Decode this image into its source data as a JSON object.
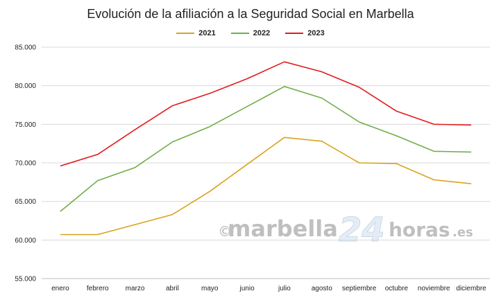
{
  "chart_data": {
    "type": "line",
    "title": "Evolución de la afiliación a la Seguridad Social en Marbella",
    "categories": [
      "enero",
      "febrero",
      "marzo",
      "abril",
      "mayo",
      "junio",
      "julio",
      "agosto",
      "septiembre",
      "octubre",
      "noviembre",
      "diciembre"
    ],
    "ylim": [
      55000,
      85000
    ],
    "yticks": [
      55000,
      60000,
      65000,
      70000,
      75000,
      80000,
      85000
    ],
    "ytick_labels": [
      "55.000",
      "60.000",
      "65.000",
      "70.000",
      "75.000",
      "80.000",
      "85.000"
    ],
    "grid": true,
    "legend_position": "top-center",
    "series": [
      {
        "name": "2021",
        "color": "#d9a21b",
        "values": [
          60700,
          60700,
          62000,
          63300,
          66300,
          69800,
          73300,
          72800,
          70000,
          69900,
          67800,
          67300
        ]
      },
      {
        "name": "2022",
        "color": "#70ad47",
        "values": [
          63700,
          67700,
          69400,
          72700,
          74700,
          77300,
          79900,
          78400,
          75300,
          73500,
          71500,
          71400
        ]
      },
      {
        "name": "2023",
        "color": "#e31a1c",
        "values": [
          69600,
          71100,
          74300,
          77400,
          79000,
          80900,
          83100,
          81800,
          79800,
          76700,
          75000,
          74900
        ]
      }
    ]
  },
  "watermark": {
    "copyright": "©",
    "brand": "marbella",
    "number": "24",
    "suffix": "horas",
    "tld": ".es"
  }
}
